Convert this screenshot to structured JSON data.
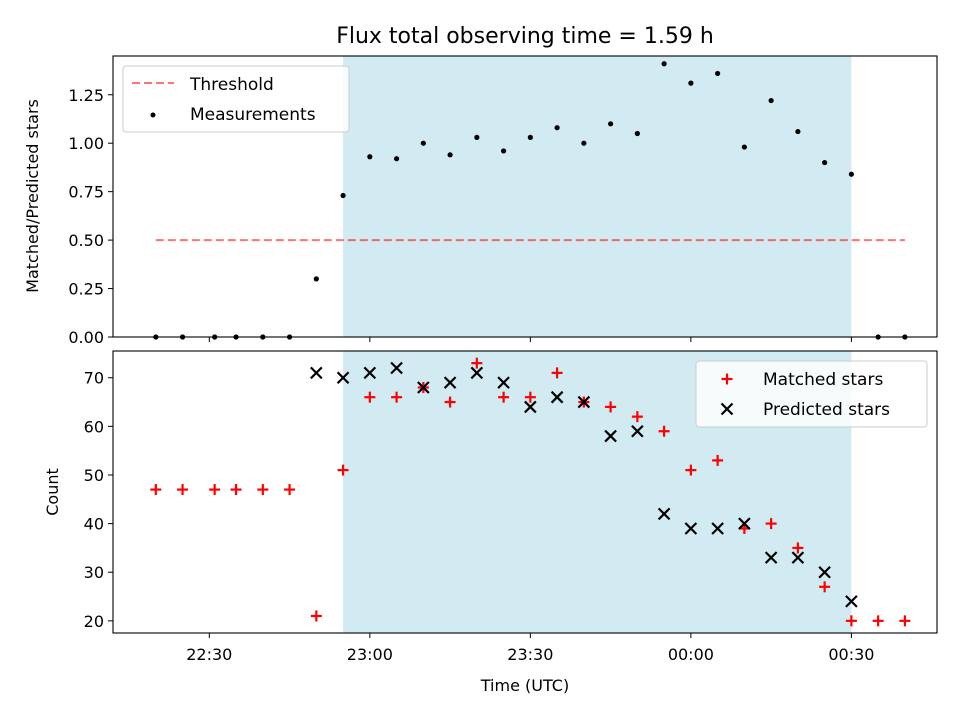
{
  "title": "Flux total observing time = 1.59 h",
  "colors": {
    "shade": "#add8e6",
    "threshold": "#ff0000",
    "measurement": "#000000",
    "matched": "#ff0000",
    "predicted": "#000000"
  },
  "chart_data": [
    {
      "type": "scatter",
      "name": "ratio-panel",
      "ylabel": "Matched/Predicted stars",
      "ylim": [
        0,
        1.45
      ],
      "yticks": [
        "0.00",
        "0.25",
        "0.50",
        "0.75",
        "1.00",
        "1.25"
      ],
      "ytick_values": [
        0,
        0.25,
        0.5,
        0.75,
        1.0,
        1.25
      ],
      "legend_position": "top-left",
      "shaded_interval": [
        "22:55",
        "00:30"
      ],
      "threshold": {
        "label": "Threshold",
        "value": 0.5,
        "x_range": [
          "22:20",
          "00:40"
        ]
      },
      "series": [
        {
          "name": "Measurements",
          "x": [
            "22:20",
            "22:25",
            "22:31",
            "22:35",
            "22:40",
            "22:45",
            "22:50",
            "22:55",
            "23:00",
            "23:05",
            "23:10",
            "23:15",
            "23:20",
            "23:25",
            "23:30",
            "23:35",
            "23:40",
            "23:45",
            "23:50",
            "23:55",
            "00:00",
            "00:05",
            "00:10",
            "00:15",
            "00:20",
            "00:25",
            "00:30",
            "00:35",
            "00:40"
          ],
          "y": [
            0,
            0,
            0,
            0,
            0,
            0,
            0.3,
            0.73,
            0.93,
            0.92,
            1.0,
            0.94,
            1.03,
            0.96,
            1.03,
            1.08,
            1.0,
            1.1,
            1.05,
            1.41,
            1.31,
            1.36,
            0.98,
            1.22,
            1.06,
            0.9,
            0.84,
            0,
            0
          ]
        }
      ]
    },
    {
      "type": "scatter",
      "name": "count-panel",
      "xlabel": "Time (UTC)",
      "ylabel": "Count",
      "ylim": [
        17.5,
        75.5
      ],
      "yticks": [
        "20",
        "30",
        "40",
        "50",
        "60",
        "70"
      ],
      "ytick_values": [
        20,
        30,
        40,
        50,
        60,
        70
      ],
      "xlim": [
        "22:12",
        "00:46"
      ],
      "xticks": [
        "22:30",
        "23:00",
        "23:30",
        "00:00",
        "00:30"
      ],
      "legend_position": "top-right",
      "shaded_interval": [
        "22:55",
        "00:30"
      ],
      "series": [
        {
          "name": "Matched stars",
          "marker": "+",
          "x": [
            "22:20",
            "22:25",
            "22:31",
            "22:35",
            "22:40",
            "22:45",
            "22:50",
            "22:55",
            "23:00",
            "23:05",
            "23:10",
            "23:15",
            "23:20",
            "23:25",
            "23:30",
            "23:35",
            "23:40",
            "23:45",
            "23:50",
            "23:55",
            "00:00",
            "00:05",
            "00:10",
            "00:15",
            "00:20",
            "00:25",
            "00:30",
            "00:35",
            "00:40"
          ],
          "y": [
            47,
            47,
            47,
            47,
            47,
            47,
            21,
            51,
            66,
            66,
            68,
            65,
            73,
            66,
            66,
            71,
            65,
            64,
            62,
            59,
            51,
            53,
            39,
            40,
            35,
            27,
            20,
            20,
            20
          ]
        },
        {
          "name": "Predicted stars",
          "marker": "x",
          "x": [
            "22:50",
            "22:55",
            "23:00",
            "23:05",
            "23:10",
            "23:15",
            "23:20",
            "23:25",
            "23:30",
            "23:35",
            "23:40",
            "23:45",
            "23:50",
            "23:55",
            "00:00",
            "00:05",
            "00:10",
            "00:15",
            "00:20",
            "00:25",
            "00:30"
          ],
          "y": [
            71,
            70,
            71,
            72,
            68,
            69,
            71,
            69,
            64,
            66,
            65,
            58,
            59,
            42,
            39,
            39,
            40,
            33,
            33,
            30,
            24
          ]
        }
      ]
    }
  ]
}
